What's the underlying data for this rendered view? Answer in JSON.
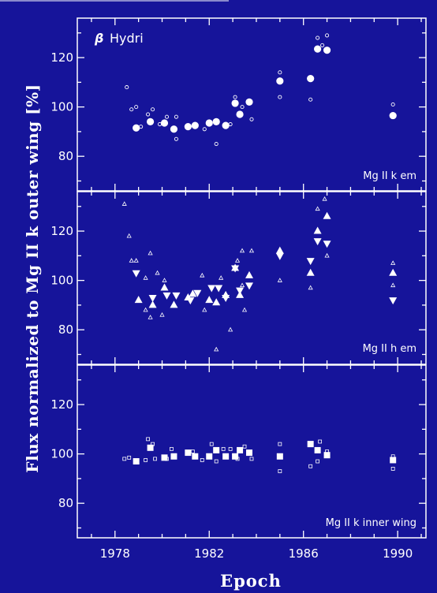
{
  "colors": {
    "background": "#16149a",
    "foreground": "#ffffff"
  },
  "labels": {
    "star_name": "Hydri",
    "star_greek": "β",
    "ylabel": "Flux normalized to Mg II k outer wing [%]",
    "xlabel": "Epoch"
  },
  "chart_data": [
    {
      "type": "scatter",
      "panel_label": "Mg II k em",
      "xlim": [
        1976.4,
        1991.2
      ],
      "ylim": [
        66,
        136
      ],
      "yticks": [
        "80",
        "100",
        "120"
      ],
      "xticks": [
        "1978",
        "1982",
        "1986",
        "1990"
      ],
      "series": [
        {
          "marker": "filled-circle",
          "points": [
            [
              1978.9,
              91.5
            ],
            [
              1979.5,
              94
            ],
            [
              1980.1,
              93.5
            ],
            [
              1980.5,
              91
            ],
            [
              1981.1,
              92
            ],
            [
              1981.4,
              92.5
            ],
            [
              1982.0,
              93.5
            ],
            [
              1982.3,
              94
            ],
            [
              1982.7,
              92.5
            ],
            [
              1983.1,
              101.5
            ],
            [
              1983.3,
              97
            ],
            [
              1983.7,
              102
            ],
            [
              1985.0,
              110.5
            ],
            [
              1986.3,
              111.5
            ],
            [
              1986.6,
              123.5
            ],
            [
              1987.0,
              123
            ],
            [
              1989.8,
              96.5
            ]
          ]
        },
        {
          "marker": "open-circle",
          "points": [
            [
              1978.5,
              108
            ],
            [
              1978.7,
              99
            ],
            [
              1978.9,
              100
            ],
            [
              1979.1,
              92
            ],
            [
              1979.4,
              97
            ],
            [
              1979.6,
              99
            ],
            [
              1979.9,
              93
            ],
            [
              1980.2,
              96
            ],
            [
              1980.6,
              96
            ],
            [
              1980.6,
              87
            ],
            [
              1981.8,
              91
            ],
            [
              1982.3,
              85
            ],
            [
              1982.9,
              93
            ],
            [
              1983.1,
              104
            ],
            [
              1983.4,
              100
            ],
            [
              1983.8,
              95
            ],
            [
              1985.0,
              104
            ],
            [
              1985.0,
              114
            ],
            [
              1986.3,
              103
            ],
            [
              1986.6,
              128
            ],
            [
              1986.8,
              125
            ],
            [
              1987.0,
              129
            ],
            [
              1989.8,
              101
            ],
            [
              1989.8,
              96
            ]
          ]
        }
      ]
    },
    {
      "type": "scatter",
      "panel_label": "Mg II h em",
      "xlim": [
        1976.4,
        1991.2
      ],
      "ylim": [
        66,
        136
      ],
      "yticks": [
        "80",
        "100",
        "120"
      ],
      "xticks": [
        "1978",
        "1982",
        "1986",
        "1990"
      ],
      "series": [
        {
          "marker": "filled-triangle-up",
          "points": [
            [
              1979.0,
              92
            ],
            [
              1979.6,
              90
            ],
            [
              1980.1,
              97
            ],
            [
              1980.5,
              90
            ],
            [
              1981.1,
              93
            ],
            [
              1981.3,
              94.5
            ],
            [
              1982.0,
              92
            ],
            [
              1982.3,
              91
            ],
            [
              1982.7,
              94
            ],
            [
              1983.1,
              105
            ],
            [
              1983.3,
              94
            ],
            [
              1983.7,
              102
            ],
            [
              1985.0,
              112
            ],
            [
              1986.3,
              103
            ],
            [
              1986.6,
              120
            ],
            [
              1987.0,
              126
            ],
            [
              1989.8,
              103
            ]
          ]
        },
        {
          "marker": "filled-triangle-down",
          "points": [
            [
              1978.9,
              103
            ],
            [
              1979.6,
              93
            ],
            [
              1980.2,
              94
            ],
            [
              1980.6,
              94
            ],
            [
              1981.2,
              92
            ],
            [
              1981.5,
              95
            ],
            [
              1982.1,
              97
            ],
            [
              1982.4,
              97
            ],
            [
              1982.7,
              93
            ],
            [
              1983.1,
              105
            ],
            [
              1983.3,
              96
            ],
            [
              1983.7,
              98
            ],
            [
              1985.0,
              110
            ],
            [
              1986.3,
              108
            ],
            [
              1986.6,
              116
            ],
            [
              1987.0,
              115
            ],
            [
              1989.8,
              92
            ]
          ]
        },
        {
          "marker": "open-triangle",
          "points": [
            [
              1978.4,
              131
            ],
            [
              1978.6,
              118
            ],
            [
              1978.7,
              108
            ],
            [
              1978.9,
              108
            ],
            [
              1979.3,
              101
            ],
            [
              1979.5,
              111
            ],
            [
              1979.8,
              103
            ],
            [
              1980.1,
              100
            ],
            [
              1979.3,
              88
            ],
            [
              1979.5,
              85
            ],
            [
              1980.0,
              86
            ],
            [
              1981.7,
              102
            ],
            [
              1981.8,
              88
            ],
            [
              1982.3,
              72
            ],
            [
              1982.5,
              101
            ],
            [
              1982.9,
              80
            ],
            [
              1983.2,
              108
            ],
            [
              1983.4,
              112
            ],
            [
              1983.4,
              98
            ],
            [
              1983.5,
              88
            ],
            [
              1983.8,
              112
            ],
            [
              1985.0,
              100
            ],
            [
              1986.3,
              97
            ],
            [
              1986.6,
              129
            ],
            [
              1986.9,
              133
            ],
            [
              1987.0,
              110
            ],
            [
              1989.8,
              107
            ],
            [
              1989.8,
              98
            ]
          ]
        }
      ]
    },
    {
      "type": "scatter",
      "panel_label": "Mg II k inner wing",
      "xlim": [
        1976.4,
        1991.2
      ],
      "ylim": [
        66,
        136
      ],
      "yticks": [
        "80",
        "100",
        "120"
      ],
      "xticks": [
        "1978",
        "1982",
        "1986",
        "1990"
      ],
      "series": [
        {
          "marker": "filled-square",
          "points": [
            [
              1978.9,
              97
            ],
            [
              1979.5,
              102.5
            ],
            [
              1980.1,
              98.5
            ],
            [
              1980.5,
              99
            ],
            [
              1981.1,
              100.5
            ],
            [
              1981.4,
              99
            ],
            [
              1982.0,
              99
            ],
            [
              1982.3,
              101.5
            ],
            [
              1982.7,
              99
            ],
            [
              1983.1,
              99
            ],
            [
              1983.3,
              101.5
            ],
            [
              1983.7,
              100.5
            ],
            [
              1985.0,
              99
            ],
            [
              1986.3,
              104
            ],
            [
              1986.6,
              101.5
            ],
            [
              1987.0,
              99.5
            ],
            [
              1989.8,
              97.5
            ]
          ]
        },
        {
          "marker": "open-square",
          "points": [
            [
              1978.4,
              98
            ],
            [
              1978.6,
              98.5
            ],
            [
              1979.3,
              97.5
            ],
            [
              1979.4,
              106
            ],
            [
              1979.6,
              104
            ],
            [
              1979.7,
              98
            ],
            [
              1980.4,
              102
            ],
            [
              1980.2,
              98
            ],
            [
              1981.3,
              101
            ],
            [
              1981.7,
              97.5
            ],
            [
              1982.1,
              104
            ],
            [
              1982.3,
              97
            ],
            [
              1982.6,
              102
            ],
            [
              1982.9,
              102
            ],
            [
              1983.2,
              98
            ],
            [
              1983.5,
              103
            ],
            [
              1983.8,
              98
            ],
            [
              1985.0,
              104
            ],
            [
              1985.0,
              93
            ],
            [
              1986.3,
              95
            ],
            [
              1986.6,
              97
            ],
            [
              1986.7,
              105
            ],
            [
              1987.0,
              101
            ],
            [
              1989.8,
              99
            ],
            [
              1989.8,
              94
            ]
          ]
        }
      ]
    }
  ]
}
